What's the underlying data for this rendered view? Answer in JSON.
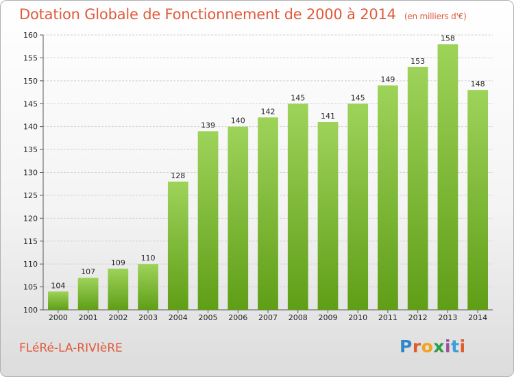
{
  "header": {
    "title": "Dotation Globale de Fonctionnement de 2000 à 2014",
    "subtitle": "(en milliers d'€)"
  },
  "commune": "FLéRé-LA-RIVIèRE",
  "logo": "Proxiti",
  "colors": {
    "title": "#e05a3a",
    "bar_light": "#9ed35a",
    "bar_dark": "#5f9e17",
    "grid": "#cfcfcf"
  },
  "chart_data": {
    "type": "bar",
    "title": "Dotation Globale de Fonctionnement de 2000 à 2014",
    "subtitle": "(en milliers d'€)",
    "xlabel": "",
    "ylabel": "",
    "ylim": [
      100,
      160
    ],
    "yticks": [
      100,
      105,
      110,
      115,
      120,
      125,
      130,
      135,
      140,
      145,
      150,
      155,
      160
    ],
    "grid": true,
    "categories": [
      "2000",
      "2001",
      "2002",
      "2003",
      "2004",
      "2005",
      "2006",
      "2007",
      "2008",
      "2009",
      "2010",
      "2011",
      "2012",
      "2013",
      "2014"
    ],
    "values": [
      104,
      107,
      109,
      110,
      128,
      139,
      140,
      142,
      145,
      141,
      145,
      149,
      153,
      158,
      148
    ]
  }
}
